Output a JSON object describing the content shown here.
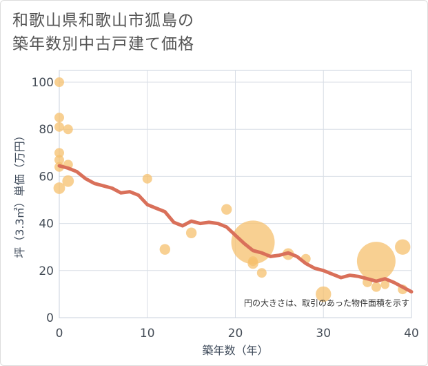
{
  "title": {
    "line1": "和歌山県和歌山市狐島の",
    "line2": "築年数別中古戸建て価格"
  },
  "chart_data": {
    "type": "scatter",
    "title": "和歌山県和歌山市狐島の築年数別中古戸建て価格",
    "xlabel": "築年数（年）",
    "ylabel": "坪（3.3㎡）単価（万円）",
    "xlim": [
      0,
      40
    ],
    "ylim": [
      0,
      105
    ],
    "xticks": [
      0,
      10,
      20,
      30,
      40
    ],
    "yticks": [
      0,
      20,
      40,
      60,
      80,
      100
    ],
    "grid": true,
    "note": "円の大きさは、取引のあった物件面積を示す",
    "colors": {
      "points": "#f5c06e",
      "trend": "#d9705a",
      "grid": "#d8dee6"
    },
    "points": [
      {
        "x": 0,
        "y": 100,
        "size": 1
      },
      {
        "x": 0,
        "y": 85,
        "size": 1
      },
      {
        "x": 0,
        "y": 81,
        "size": 1
      },
      {
        "x": 1,
        "y": 80,
        "size": 1
      },
      {
        "x": 0,
        "y": 70,
        "size": 1
      },
      {
        "x": 0,
        "y": 67,
        "size": 1
      },
      {
        "x": 0,
        "y": 64,
        "size": 1
      },
      {
        "x": 1,
        "y": 65,
        "size": 1
      },
      {
        "x": 1,
        "y": 58,
        "size": 1.2
      },
      {
        "x": 0,
        "y": 55,
        "size": 1.2
      },
      {
        "x": 10,
        "y": 59,
        "size": 1
      },
      {
        "x": 12,
        "y": 29,
        "size": 1.1
      },
      {
        "x": 15,
        "y": 36,
        "size": 1.1
      },
      {
        "x": 19,
        "y": 46,
        "size": 1.1
      },
      {
        "x": 22,
        "y": 32,
        "size": 4.5
      },
      {
        "x": 22,
        "y": 24,
        "size": 1
      },
      {
        "x": 22,
        "y": 23,
        "size": 1.1
      },
      {
        "x": 23,
        "y": 19,
        "size": 1
      },
      {
        "x": 26,
        "y": 27,
        "size": 1.2
      },
      {
        "x": 28,
        "y": 25,
        "size": 1
      },
      {
        "x": 30,
        "y": 10,
        "size": 1.6
      },
      {
        "x": 35,
        "y": 15,
        "size": 1
      },
      {
        "x": 36,
        "y": 24,
        "size": 4
      },
      {
        "x": 36,
        "y": 13,
        "size": 1
      },
      {
        "x": 37,
        "y": 14,
        "size": 0.9
      },
      {
        "x": 39,
        "y": 30,
        "size": 1.6
      },
      {
        "x": 39,
        "y": 12,
        "size": 1
      }
    ],
    "trend": {
      "x": [
        0,
        1,
        2,
        3,
        4,
        5,
        6,
        7,
        8,
        9,
        10,
        11,
        12,
        13,
        14,
        15,
        16,
        17,
        18,
        19,
        20,
        21,
        22,
        23,
        24,
        25,
        26,
        27,
        28,
        29,
        30,
        31,
        32,
        33,
        34,
        35,
        36,
        37,
        38,
        39,
        40
      ],
      "y": [
        64.5,
        63.5,
        62,
        59,
        57,
        56,
        55,
        53,
        53.5,
        52,
        48,
        46.5,
        45,
        40.5,
        39,
        41,
        40,
        40.5,
        40,
        38.5,
        35,
        31.5,
        28.5,
        27.5,
        26,
        26.5,
        27.5,
        26,
        23,
        21,
        20,
        18.5,
        17,
        18,
        17.5,
        16.5,
        15.5,
        16.5,
        15,
        13,
        11
      ]
    }
  }
}
